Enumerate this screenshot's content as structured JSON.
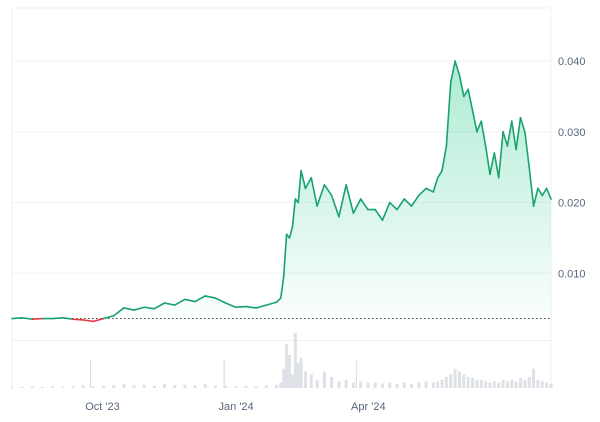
{
  "chart_data": {
    "type": "area",
    "title": "",
    "xlabel": "",
    "ylabel": "",
    "x_ticks": [
      "Oct '23",
      "Jan '24",
      "Apr '24"
    ],
    "y_ticks": [
      "0.010",
      "0.020",
      "0.030",
      "0.040"
    ],
    "ylim": [
      -0.0065,
      0.0475
    ],
    "xlim": [
      "2023-08-08",
      "2024-08-13"
    ],
    "baseline": 0.0036,
    "grid": true,
    "legend": "none",
    "colors": {
      "up": "#16c784",
      "up_line": "#18a26d",
      "down": "#ea3943",
      "grid": "#eff2f5",
      "baseline": "#444444",
      "volume": "#d6dbe1",
      "axis_text": "#58667e"
    },
    "series": [
      {
        "x": [
          "2023-08-08",
          "2023-08-15",
          "2023-08-22",
          "2023-08-29",
          "2023-09-05",
          "2023-09-12",
          "2023-09-19",
          "2023-09-26",
          "2023-10-03",
          "2023-10-10",
          "2023-10-17",
          "2023-10-24",
          "2023-10-31",
          "2023-11-07",
          "2023-11-14",
          "2023-11-21",
          "2023-11-28",
          "2023-12-05",
          "2023-12-12",
          "2023-12-19",
          "2023-12-26",
          "2024-01-02",
          "2024-01-09",
          "2024-01-16",
          "2024-01-23",
          "2024-01-30",
          "2024-02-06",
          "2024-02-09",
          "2024-02-11",
          "2024-02-13",
          "2024-02-15",
          "2024-02-17",
          "2024-02-19",
          "2024-02-21",
          "2024-02-23",
          "2024-02-26",
          "2024-03-01",
          "2024-03-05",
          "2024-03-10",
          "2024-03-15",
          "2024-03-20",
          "2024-03-25",
          "2024-03-30",
          "2024-04-04",
          "2024-04-09",
          "2024-04-14",
          "2024-04-19",
          "2024-04-24",
          "2024-04-29",
          "2024-05-04",
          "2024-05-09",
          "2024-05-14",
          "2024-05-19",
          "2024-05-24",
          "2024-05-27",
          "2024-05-30",
          "2024-06-02",
          "2024-06-05",
          "2024-06-08",
          "2024-06-11",
          "2024-06-14",
          "2024-06-17",
          "2024-06-20",
          "2024-06-23",
          "2024-06-26",
          "2024-06-29",
          "2024-07-02",
          "2024-07-05",
          "2024-07-08",
          "2024-07-11",
          "2024-07-14",
          "2024-07-17",
          "2024-07-20",
          "2024-07-23",
          "2024-07-26",
          "2024-07-29",
          "2024-08-01",
          "2024-08-04",
          "2024-08-07",
          "2024-08-10",
          "2024-08-13"
        ],
        "values": [
          0.0036,
          0.0037,
          0.0035,
          0.0036,
          0.0036,
          0.0037,
          0.0035,
          0.0034,
          0.0032,
          0.0036,
          0.004,
          0.0051,
          0.0048,
          0.0052,
          0.005,
          0.0058,
          0.0055,
          0.0063,
          0.006,
          0.0068,
          0.0065,
          0.0058,
          0.0052,
          0.0053,
          0.0051,
          0.0055,
          0.0059,
          0.0065,
          0.0095,
          0.0155,
          0.015,
          0.0165,
          0.0205,
          0.02,
          0.0245,
          0.022,
          0.0235,
          0.0195,
          0.0225,
          0.021,
          0.018,
          0.0225,
          0.0185,
          0.0205,
          0.019,
          0.019,
          0.0175,
          0.02,
          0.019,
          0.0205,
          0.0195,
          0.021,
          0.022,
          0.0215,
          0.0235,
          0.0245,
          0.028,
          0.037,
          0.04,
          0.038,
          0.035,
          0.036,
          0.033,
          0.03,
          0.0315,
          0.028,
          0.024,
          0.027,
          0.0235,
          0.03,
          0.028,
          0.0315,
          0.0275,
          0.032,
          0.03,
          0.025,
          0.0195,
          0.022,
          0.021,
          0.022,
          0.0205
        ],
        "volume": [
          0.02,
          0.02,
          0.03,
          0.02,
          0.03,
          0.02,
          0.03,
          0.05,
          0.03,
          0.04,
          0.05,
          0.08,
          0.05,
          0.06,
          0.04,
          0.08,
          0.05,
          0.06,
          0.05,
          0.07,
          0.05,
          0.04,
          0.03,
          0.04,
          0.03,
          0.05,
          0.06,
          0.1,
          0.35,
          0.8,
          0.6,
          0.25,
          1.0,
          0.45,
          0.55,
          0.3,
          0.25,
          0.15,
          0.3,
          0.2,
          0.12,
          0.15,
          0.1,
          0.12,
          0.1,
          0.1,
          0.08,
          0.1,
          0.08,
          0.1,
          0.08,
          0.1,
          0.12,
          0.1,
          0.12,
          0.15,
          0.2,
          0.25,
          0.35,
          0.3,
          0.25,
          0.2,
          0.18,
          0.15,
          0.15,
          0.12,
          0.1,
          0.12,
          0.1,
          0.15,
          0.12,
          0.15,
          0.12,
          0.18,
          0.15,
          0.2,
          0.35,
          0.15,
          0.12,
          0.1,
          0.08
        ]
      }
    ]
  }
}
